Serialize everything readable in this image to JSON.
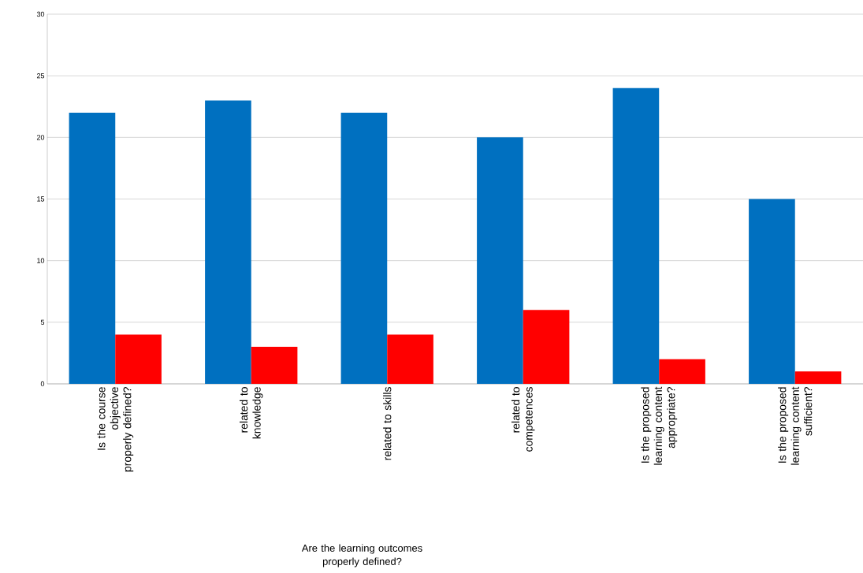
{
  "chart_data": {
    "type": "bar",
    "categories": [
      "Is the course objective properly defined?",
      "related to knowledge",
      "related to skills",
      "related to competences",
      "Is the proposed learning content appropriate?",
      "Is the proposed learning content sufficient?"
    ],
    "series": [
      {
        "color": "#0070c0",
        "values": [
          22,
          23,
          22,
          20,
          24,
          15
        ]
      },
      {
        "color": "#ff0000",
        "values": [
          4,
          3,
          4,
          6,
          2,
          1
        ]
      }
    ],
    "ylim": [
      0,
      30
    ],
    "yticks": [
      0,
      5,
      10,
      15,
      20,
      25,
      30
    ],
    "grid": "y",
    "annotations": [
      "Are the learning outcomes properly defined?"
    ]
  }
}
